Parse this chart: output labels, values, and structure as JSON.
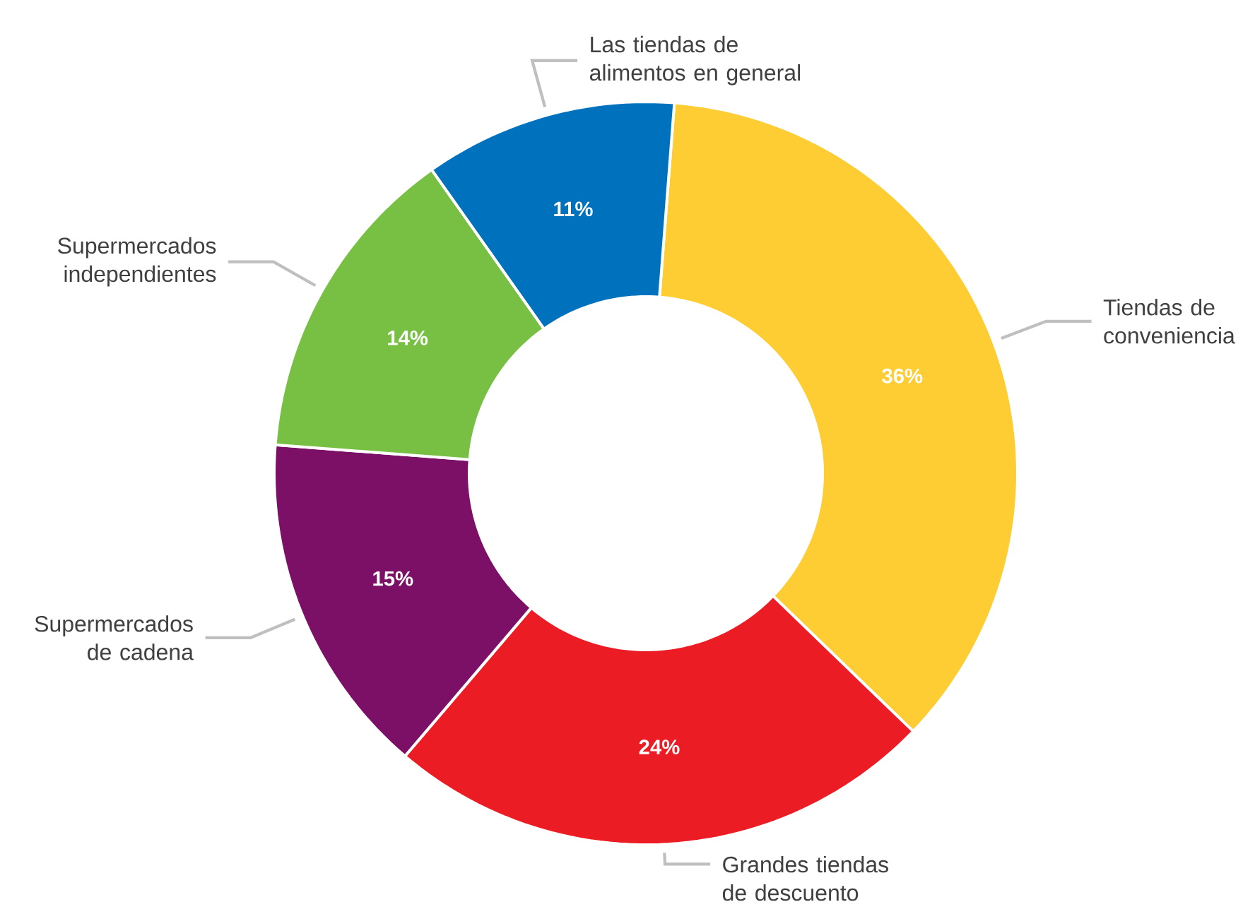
{
  "chart_data": {
    "type": "donut",
    "categories": [
      "Tiendas de conveniencia",
      "Grandes tiendas de descuento",
      "Supermercados de cadena",
      "Supermercados independientes",
      "Las tiendas de alimentos en general"
    ],
    "values": [
      36,
      24,
      15,
      14,
      11
    ],
    "value_labels": [
      "36%",
      "24%",
      "15%",
      "14%",
      "11%"
    ],
    "colors": [
      "#fdcd33",
      "#ec1c24",
      "#7b1066",
      "#78c043",
      "#0071bc"
    ]
  }
}
